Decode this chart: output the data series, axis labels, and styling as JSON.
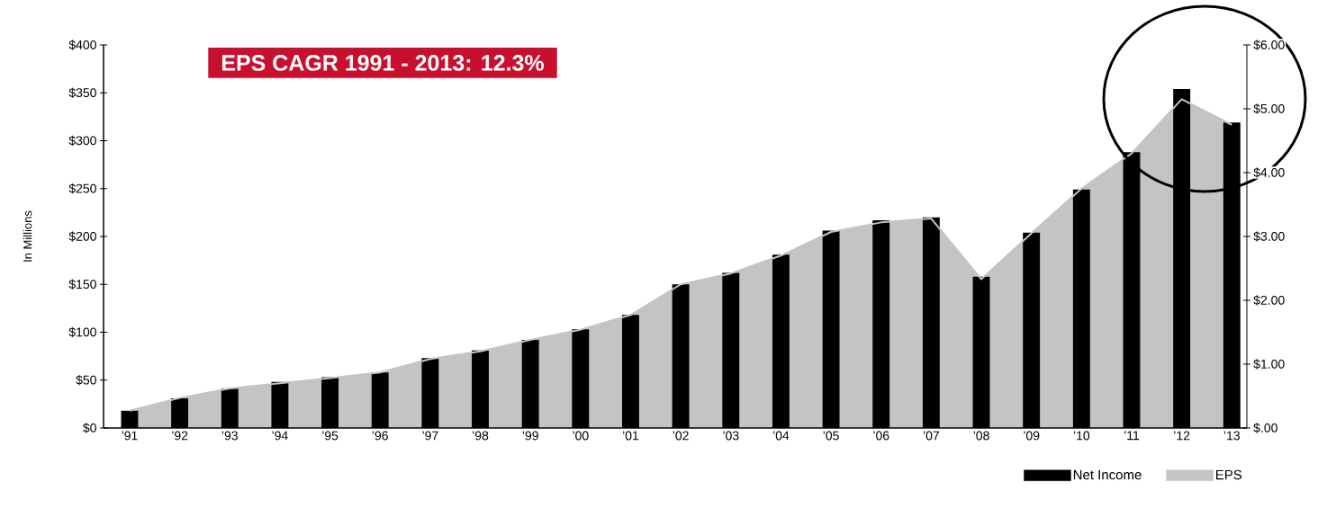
{
  "chart_data": {
    "type": "bar",
    "title": "EPS CAGR 1991 - 2013: 12.3%",
    "ylabel": "In Millions",
    "categories": [
      "’91",
      "’92",
      "’93",
      "’94",
      "’95",
      "’96",
      "’97",
      "’98",
      "’99",
      "’00",
      "’01",
      "’02",
      "’03",
      "’04",
      "’05",
      "’06",
      "’07",
      "’08",
      "’09",
      "’10",
      "’11",
      "’12",
      "’13"
    ],
    "series": [
      {
        "name": "Net Income",
        "color": "#000000",
        "values": [
          18,
          31,
          41,
          48,
          53,
          58,
          73,
          81,
          92,
          103,
          118,
          150,
          162,
          181,
          206,
          217,
          220,
          158,
          204,
          249,
          288,
          354,
          319
        ]
      },
      {
        "name": "EPS",
        "type": "area",
        "axis": "y2",
        "color": "#c3c4c6",
        "values": [
          0.27,
          0.47,
          0.62,
          0.7,
          0.78,
          0.87,
          1.08,
          1.2,
          1.38,
          1.54,
          1.77,
          2.25,
          2.42,
          2.7,
          3.07,
          3.22,
          3.28,
          2.33,
          3.05,
          3.75,
          4.3,
          5.15,
          4.75
        ]
      }
    ],
    "ylim": [
      0,
      400
    ],
    "yticks": [
      {
        "value": 0,
        "label": "$0"
      },
      {
        "value": 50,
        "label": "$50"
      },
      {
        "value": 100,
        "label": "$100"
      },
      {
        "value": 150,
        "label": "$150"
      },
      {
        "value": 200,
        "label": "$200"
      },
      {
        "value": 250,
        "label": "$250"
      },
      {
        "value": 300,
        "label": "$300"
      },
      {
        "value": 350,
        "label": "$350"
      },
      {
        "value": 400,
        "label": "$400"
      }
    ],
    "y2lim": [
      0,
      6
    ],
    "y2ticks": [
      {
        "value": 0,
        "label": "$.00"
      },
      {
        "value": 1,
        "label": "$1.00"
      },
      {
        "value": 2,
        "label": "$2.00"
      },
      {
        "value": 3,
        "label": "$3.00"
      },
      {
        "value": 4,
        "label": "$4.00"
      },
      {
        "value": 5,
        "label": "$5.00"
      },
      {
        "value": 6,
        "label": "$6.00"
      }
    ],
    "legend": "bottom right",
    "grid": false
  }
}
